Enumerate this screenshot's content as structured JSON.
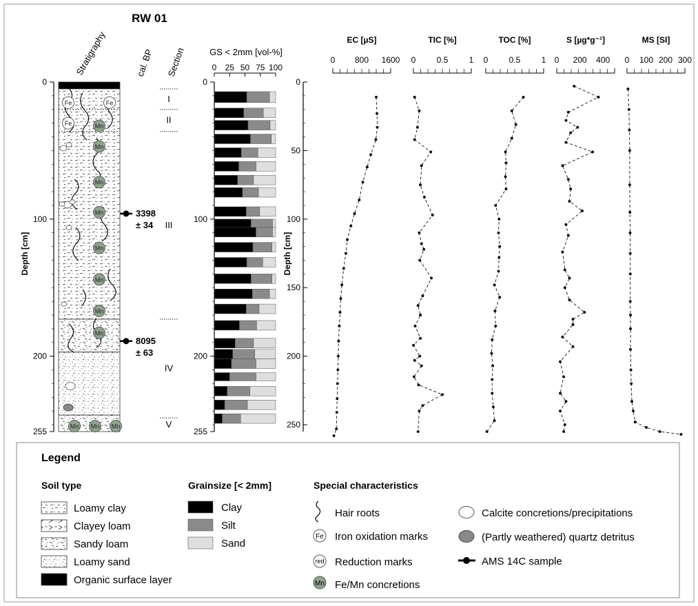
{
  "title": "RW 01",
  "col_headers": {
    "stratigraphy": "Stratigraphy",
    "calbp": "cal. BP",
    "section": "Section",
    "gs": "GS < 2mm [vol-%]"
  },
  "depth_label": "Depth [cm]",
  "depth_ticks": [
    0,
    50,
    100,
    150,
    200,
    250
  ],
  "depth_ticks_left": [
    "0",
    "100",
    "200",
    "255"
  ],
  "depth_ticks_gs": [
    "0",
    "100",
    "200",
    "255"
  ],
  "depth_ticks_right": [
    "0",
    "50",
    "100",
    "150",
    "200",
    "250"
  ],
  "depth_max": 255,
  "sections": [
    {
      "label": "I",
      "from": 5,
      "to": 20
    },
    {
      "label": "II",
      "from": 20,
      "to": 36
    },
    {
      "label": "III",
      "from": 36,
      "to": 173
    },
    {
      "label": "IV",
      "from": 173,
      "to": 245
    },
    {
      "label": "V",
      "from": 245,
      "to": 255
    }
  ],
  "ams_samples": [
    {
      "depth": 96,
      "age": "3398",
      "err": "± 34"
    },
    {
      "depth": 189,
      "age": "8095",
      "err": "± 63"
    }
  ],
  "strat_layers": [
    {
      "type": "organic",
      "from": 0,
      "to": 5
    },
    {
      "type": "loamy_clay",
      "from": 5,
      "to": 173
    },
    {
      "type": "sandy_loam",
      "from": 173,
      "to": 197
    },
    {
      "type": "loamy_sand",
      "from": 197,
      "to": 243
    },
    {
      "type": "sandy_loam",
      "from": 243,
      "to": 255
    }
  ],
  "strat_markers": [
    {
      "kind": "Fe",
      "col": 0,
      "depth": 15
    },
    {
      "kind": "Fe",
      "col": 2,
      "depth": 15
    },
    {
      "kind": "Fe",
      "col": 0,
      "depth": 30
    },
    {
      "kind": "Mn",
      "col": 1.5,
      "depth": 32
    },
    {
      "kind": "Mn",
      "col": 1.5,
      "depth": 47
    },
    {
      "kind": "Mn",
      "col": 1.5,
      "depth": 73
    },
    {
      "kind": "Mn",
      "col": 1.5,
      "depth": 95
    },
    {
      "kind": "Mn",
      "col": 1.5,
      "depth": 121
    },
    {
      "kind": "Mn",
      "col": 1.5,
      "depth": 144
    },
    {
      "kind": "Mn",
      "col": 1.5,
      "depth": 167
    },
    {
      "kind": "Mn",
      "col": 1.5,
      "depth": 183
    },
    {
      "kind": "Mn",
      "col": 0.3,
      "depth": 251
    },
    {
      "kind": "Mn",
      "col": 1.3,
      "depth": 251
    },
    {
      "kind": "Mn",
      "col": 2.3,
      "depth": 251
    }
  ],
  "gs_ticks": [
    "0",
    "25",
    "50",
    "75",
    "100"
  ],
  "chart_data": [
    {
      "type": "bar",
      "title": "GS < 2mm [vol-%]",
      "stacked": true,
      "orientation": "horizontal",
      "xlim": [
        0,
        100
      ],
      "series_names": [
        "Clay",
        "Silt",
        "Sand"
      ],
      "layers": [
        {
          "top": 7,
          "bot": 15,
          "clay": 53,
          "silt": 37,
          "sand": 10
        },
        {
          "top": 19,
          "bot": 26,
          "clay": 48,
          "silt": 32,
          "sand": 20
        },
        {
          "top": 28,
          "bot": 35,
          "clay": 55,
          "silt": 36,
          "sand": 9
        },
        {
          "top": 38,
          "bot": 45,
          "clay": 59,
          "silt": 34,
          "sand": 7
        },
        {
          "top": 48,
          "bot": 55,
          "clay": 44,
          "silt": 27,
          "sand": 29
        },
        {
          "top": 58,
          "bot": 65,
          "clay": 40,
          "silt": 28,
          "sand": 32
        },
        {
          "top": 68,
          "bot": 75,
          "clay": 38,
          "silt": 26,
          "sand": 36
        },
        {
          "top": 77,
          "bot": 84,
          "clay": 46,
          "silt": 26,
          "sand": 28
        },
        {
          "top": 91,
          "bot": 98,
          "clay": 52,
          "silt": 22,
          "sand": 26
        },
        {
          "top": 100,
          "bot": 107,
          "clay": 60,
          "silt": 35,
          "sand": 5
        },
        {
          "top": 106,
          "bot": 113,
          "clay": 68,
          "silt": 27,
          "sand": 5
        },
        {
          "top": 117,
          "bot": 124,
          "clay": 63,
          "silt": 31,
          "sand": 6
        },
        {
          "top": 128,
          "bot": 135,
          "clay": 53,
          "silt": 26,
          "sand": 21
        },
        {
          "top": 140,
          "bot": 147,
          "clay": 60,
          "silt": 34,
          "sand": 6
        },
        {
          "top": 151,
          "bot": 158,
          "clay": 62,
          "silt": 28,
          "sand": 10
        },
        {
          "top": 162,
          "bot": 169,
          "clay": 52,
          "silt": 21,
          "sand": 27
        },
        {
          "top": 174,
          "bot": 181,
          "clay": 41,
          "silt": 28,
          "sand": 31
        },
        {
          "top": 187,
          "bot": 194,
          "clay": 34,
          "silt": 30,
          "sand": 36
        },
        {
          "top": 195,
          "bot": 202,
          "clay": 30,
          "silt": 36,
          "sand": 34
        },
        {
          "top": 202,
          "bot": 209,
          "clay": 28,
          "silt": 40,
          "sand": 32
        },
        {
          "top": 212,
          "bot": 218,
          "clay": 25,
          "silt": 43,
          "sand": 32
        },
        {
          "top": 222,
          "bot": 229,
          "clay": 21,
          "silt": 37,
          "sand": 42
        },
        {
          "top": 232,
          "bot": 239,
          "clay": 17,
          "silt": 37,
          "sand": 46
        },
        {
          "top": 242,
          "bot": 249,
          "clay": 13,
          "silt": 30,
          "sand": 57
        }
      ]
    },
    {
      "type": "line",
      "title": "EC [µS]",
      "xlim": [
        0,
        1600
      ],
      "ticks": [
        "0",
        "800",
        "1600"
      ],
      "tickvals": [
        0,
        800,
        1600
      ],
      "points": [
        [
          1200,
          11
        ],
        [
          1220,
          23
        ],
        [
          1230,
          33
        ],
        [
          1190,
          42
        ],
        [
          1050,
          53
        ],
        [
          950,
          62
        ],
        [
          830,
          73
        ],
        [
          730,
          86
        ],
        [
          600,
          96
        ],
        [
          500,
          105
        ],
        [
          400,
          115
        ],
        [
          360,
          125
        ],
        [
          300,
          136
        ],
        [
          250,
          148
        ],
        [
          220,
          158
        ],
        [
          200,
          168
        ],
        [
          180,
          178
        ],
        [
          160,
          189
        ],
        [
          150,
          200
        ],
        [
          140,
          210
        ],
        [
          130,
          220
        ],
        [
          120,
          231
        ],
        [
          110,
          241
        ],
        [
          100,
          253
        ],
        [
          30,
          258
        ]
      ]
    },
    {
      "type": "line",
      "title": "TIC [%]",
      "xlim": [
        0,
        1
      ],
      "ticks": [
        "0",
        "0.5",
        "1"
      ],
      "tickvals": [
        0,
        0.5,
        1
      ],
      "points": [
        [
          0.02,
          11
        ],
        [
          0.1,
          21
        ],
        [
          0.07,
          33
        ],
        [
          0.02,
          42
        ],
        [
          0.3,
          51
        ],
        [
          0.14,
          61
        ],
        [
          0.12,
          75
        ],
        [
          0.19,
          84
        ],
        [
          0.33,
          97
        ],
        [
          0.1,
          110
        ],
        [
          0.14,
          118
        ],
        [
          0.18,
          122
        ],
        [
          0.11,
          130
        ],
        [
          0.31,
          143
        ],
        [
          0.16,
          156
        ],
        [
          0.08,
          163
        ],
        [
          0.12,
          170
        ],
        [
          0.03,
          178
        ],
        [
          0.12,
          187
        ],
        [
          0.0,
          192
        ],
        [
          0.11,
          200
        ],
        [
          0.02,
          203
        ],
        [
          0.14,
          207
        ],
        [
          0.01,
          215
        ],
        [
          0.09,
          221
        ],
        [
          0.5,
          228
        ],
        [
          0.16,
          236
        ],
        [
          0.1,
          240
        ],
        [
          0.08,
          255
        ]
      ]
    },
    {
      "type": "line",
      "title": "TOC [%]",
      "xlim": [
        0,
        1
      ],
      "ticks": [
        "0",
        "0.5",
        "1"
      ],
      "tickvals": [
        0,
        0.5,
        1
      ],
      "points": [
        [
          0.65,
          11
        ],
        [
          0.45,
          21
        ],
        [
          0.52,
          31
        ],
        [
          0.45,
          41
        ],
        [
          0.34,
          51
        ],
        [
          0.35,
          59
        ],
        [
          0.34,
          69
        ],
        [
          0.35,
          78
        ],
        [
          0.17,
          90
        ],
        [
          0.23,
          100
        ],
        [
          0.22,
          110
        ],
        [
          0.24,
          120
        ],
        [
          0.23,
          128
        ],
        [
          0.22,
          138
        ],
        [
          0.15,
          148
        ],
        [
          0.24,
          157
        ],
        [
          0.16,
          167
        ],
        [
          0.17,
          178
        ],
        [
          0.11,
          188
        ],
        [
          0.1,
          198
        ],
        [
          0.12,
          207
        ],
        [
          0.11,
          217
        ],
        [
          0.11,
          227
        ],
        [
          0.13,
          237
        ],
        [
          0.15,
          247
        ],
        [
          0.02,
          255
        ]
      ]
    },
    {
      "type": "line",
      "title": "S [µg*g⁻¹]",
      "xlim": [
        0,
        500
      ],
      "ticks": [
        "0",
        "200",
        "400"
      ],
      "tickvals": [
        0,
        200,
        400
      ],
      "points": [
        [
          150,
          3
        ],
        [
          360,
          11
        ],
        [
          100,
          22
        ],
        [
          80,
          28
        ],
        [
          180,
          33
        ],
        [
          120,
          37
        ],
        [
          80,
          44
        ],
        [
          310,
          51
        ],
        [
          50,
          61
        ],
        [
          100,
          71
        ],
        [
          120,
          78
        ],
        [
          110,
          87
        ],
        [
          220,
          94
        ],
        [
          80,
          104
        ],
        [
          100,
          112
        ],
        [
          50,
          124
        ],
        [
          70,
          137
        ],
        [
          110,
          143
        ],
        [
          70,
          150
        ],
        [
          110,
          159
        ],
        [
          240,
          168
        ],
        [
          140,
          173
        ],
        [
          140,
          177
        ],
        [
          50,
          186
        ],
        [
          140,
          193
        ],
        [
          30,
          204
        ],
        [
          60,
          215
        ],
        [
          30,
          227
        ],
        [
          80,
          233
        ],
        [
          30,
          240
        ],
        [
          70,
          250
        ],
        [
          60,
          255
        ]
      ]
    },
    {
      "type": "line",
      "title": "MS [SI]",
      "xlim": [
        0,
        300
      ],
      "ticks": [
        "0",
        "100",
        "200",
        "300"
      ],
      "tickvals": [
        0,
        100,
        200,
        300
      ],
      "points": [
        [
          5,
          5
        ],
        [
          10,
          20
        ],
        [
          12,
          35
        ],
        [
          14,
          50
        ],
        [
          14,
          75
        ],
        [
          15,
          95
        ],
        [
          16,
          110
        ],
        [
          17,
          125
        ],
        [
          17,
          140
        ],
        [
          17,
          160
        ],
        [
          18,
          170
        ],
        [
          18,
          180
        ],
        [
          18,
          195
        ],
        [
          20,
          210
        ],
        [
          22,
          220
        ],
        [
          25,
          233
        ],
        [
          32,
          240
        ],
        [
          42,
          248
        ],
        [
          100,
          252
        ],
        [
          170,
          255
        ],
        [
          280,
          257
        ]
      ]
    }
  ],
  "legend": {
    "title": "Legend",
    "soil_title": "Soil type",
    "soil_items": [
      "Loamy clay",
      "Clayey loam",
      "Sandy loam",
      "Loamy sand",
      "Organic surface layer"
    ],
    "gs_title": "Grainsize [< 2mm]",
    "gs_items": [
      "Clay",
      "Silt",
      "Sand"
    ],
    "special_title": "Special characteristics",
    "special_items": [
      "Hair roots",
      "Iron oxidation marks",
      "Reduction marks",
      "Fe/Mn concretions"
    ],
    "special_items2": [
      "Calcite concretions/precipitations",
      "(Partly weathered) quartz detritus",
      "AMS 14C sample"
    ],
    "marker_fe": "Fe",
    "marker_red": "red",
    "marker_mn": "Mn"
  },
  "colors": {
    "clay": "#000000",
    "silt": "#8a8a8a",
    "sand": "#dedede",
    "mn": "#8fa38f"
  }
}
